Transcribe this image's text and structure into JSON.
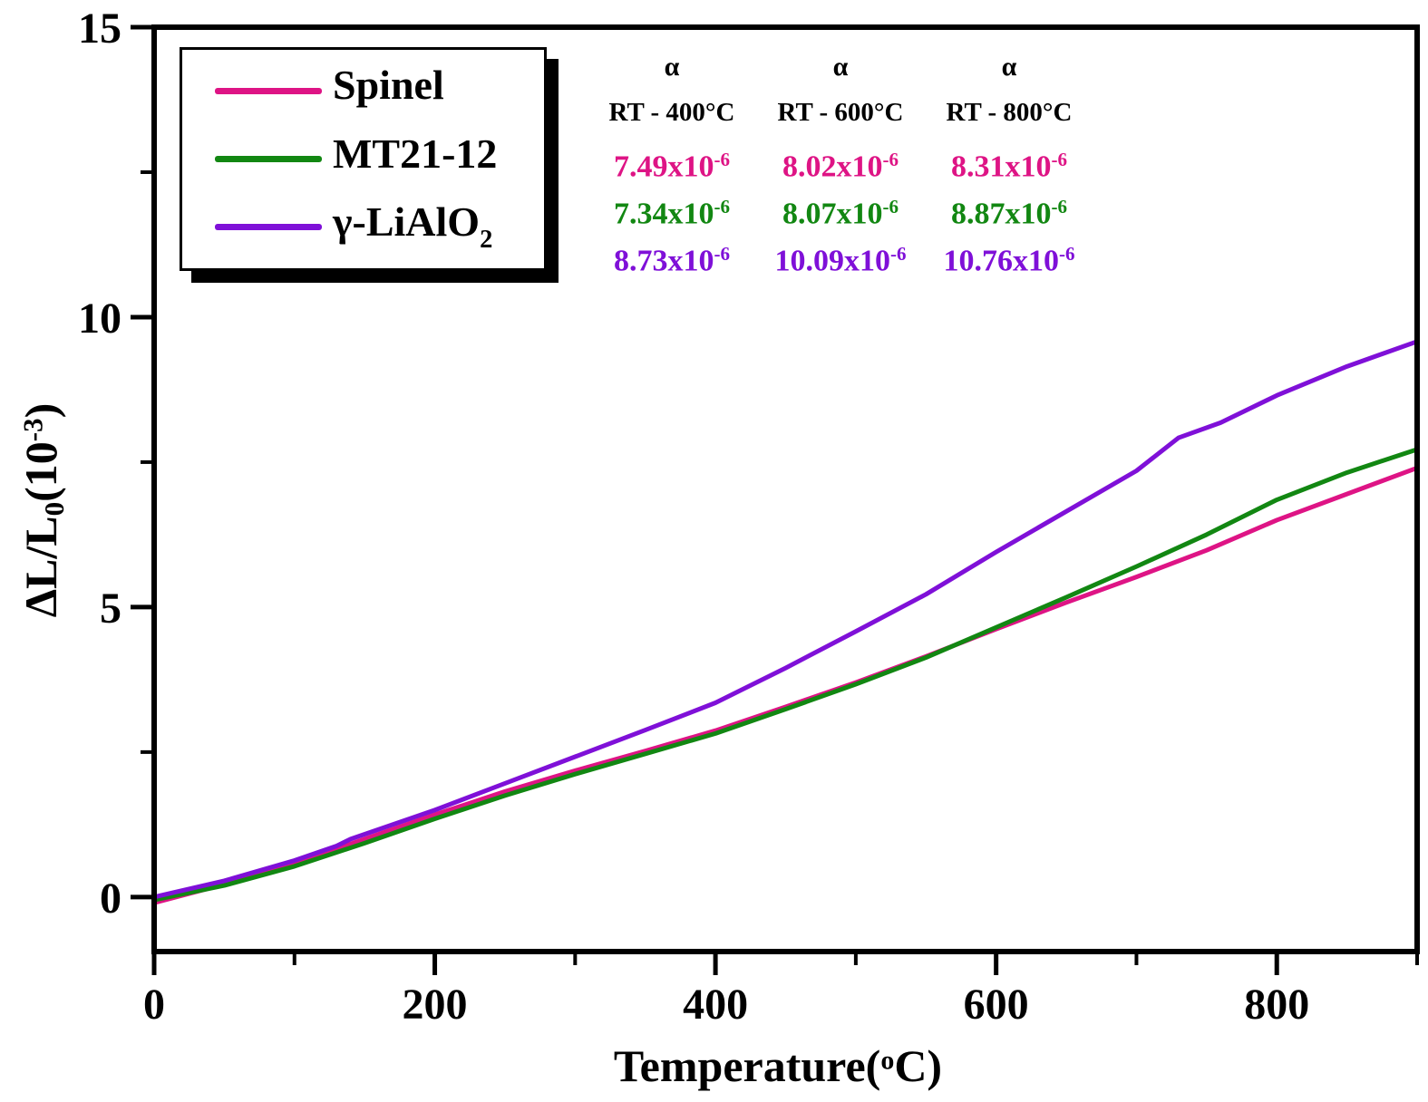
{
  "figure": {
    "background": "#ffffff"
  },
  "y_axis_label": {
    "pre": "ΔL/L",
    "sub": "0",
    "mid": "(10",
    "sup": "-3",
    "post": ")"
  },
  "x_axis_label": {
    "pre": "Temperature(",
    "deg": "o",
    "post": "C)"
  },
  "legend": {
    "items": [
      {
        "name": "Spinel",
        "sub": "",
        "color": "#DE1485"
      },
      {
        "name": "MT21-12",
        "sub": "",
        "color": "#128712"
      },
      {
        "name": "γ-LiAlO",
        "sub": "2",
        "color": "#7F10D8"
      }
    ]
  },
  "alpha_table": {
    "symbol": "α",
    "headers": [
      "RT - 400°C",
      "RT - 600°C",
      "RT - 800°C"
    ],
    "rows": [
      {
        "series": "Spinel",
        "color": "#DE1485",
        "values": [
          {
            "m": "7.49x10",
            "e": "-6"
          },
          {
            "m": "8.02x10",
            "e": "-6"
          },
          {
            "m": "8.31x10",
            "e": "-6"
          }
        ]
      },
      {
        "series": "MT21-12",
        "color": "#128712",
        "values": [
          {
            "m": "7.34x10",
            "e": "-6"
          },
          {
            "m": "8.07x10",
            "e": "-6"
          },
          {
            "m": "8.87x10",
            "e": "-6"
          }
        ]
      },
      {
        "series": "γ-LiAlO2",
        "color": "#7F10D8",
        "values": [
          {
            "m": "8.73x10",
            "e": "-6"
          },
          {
            "m": "10.09x10",
            "e": "-6"
          },
          {
            "m": "10.76x10",
            "e": "-6"
          }
        ]
      }
    ]
  },
  "chart_data": {
    "type": "line",
    "title": "",
    "xlabel": "Temperature(°C)",
    "ylabel": "ΔL/L0(10^-3)",
    "xlim": [
      0,
      900
    ],
    "ylim": [
      -0.94,
      15
    ],
    "x_major_ticks": [
      0,
      200,
      400,
      600,
      800
    ],
    "x_minor_ticks": [
      100,
      300,
      500,
      700,
      900
    ],
    "y_major_ticks": [
      0,
      5,
      10,
      15
    ],
    "y_minor_ticks": [
      2.5,
      7.5,
      12.5
    ],
    "grid": false,
    "legend_position": "top-left",
    "series": [
      {
        "name": "Spinel",
        "color": "#DE1485",
        "points": [
          [
            0,
            -0.1
          ],
          [
            50,
            0.22
          ],
          [
            100,
            0.58
          ],
          [
            150,
            1.0
          ],
          [
            200,
            1.42
          ],
          [
            250,
            1.82
          ],
          [
            300,
            2.18
          ],
          [
            350,
            2.52
          ],
          [
            400,
            2.87
          ],
          [
            450,
            3.28
          ],
          [
            500,
            3.7
          ],
          [
            550,
            4.15
          ],
          [
            600,
            4.62
          ],
          [
            650,
            5.08
          ],
          [
            700,
            5.52
          ],
          [
            750,
            5.98
          ],
          [
            800,
            6.5
          ],
          [
            850,
            6.95
          ],
          [
            900,
            7.4
          ]
        ]
      },
      {
        "name": "MT21-12",
        "color": "#128712",
        "points": [
          [
            0,
            -0.05
          ],
          [
            50,
            0.2
          ],
          [
            100,
            0.53
          ],
          [
            150,
            0.93
          ],
          [
            200,
            1.35
          ],
          [
            250,
            1.75
          ],
          [
            300,
            2.12
          ],
          [
            350,
            2.47
          ],
          [
            400,
            2.82
          ],
          [
            450,
            3.24
          ],
          [
            500,
            3.67
          ],
          [
            550,
            4.13
          ],
          [
            600,
            4.65
          ],
          [
            650,
            5.17
          ],
          [
            700,
            5.7
          ],
          [
            750,
            6.25
          ],
          [
            800,
            6.85
          ],
          [
            850,
            7.32
          ],
          [
            900,
            7.72
          ]
        ]
      },
      {
        "name": "γ-LiAlO2",
        "color": "#7F10D8",
        "points": [
          [
            0,
            0.0
          ],
          [
            50,
            0.28
          ],
          [
            100,
            0.63
          ],
          [
            130,
            0.88
          ],
          [
            140,
            1.0
          ],
          [
            200,
            1.5
          ],
          [
            250,
            1.96
          ],
          [
            300,
            2.42
          ],
          [
            350,
            2.88
          ],
          [
            400,
            3.35
          ],
          [
            450,
            3.95
          ],
          [
            500,
            4.58
          ],
          [
            550,
            5.22
          ],
          [
            600,
            5.95
          ],
          [
            650,
            6.65
          ],
          [
            700,
            7.35
          ],
          [
            730,
            7.92
          ],
          [
            760,
            8.18
          ],
          [
            800,
            8.65
          ],
          [
            850,
            9.15
          ],
          [
            900,
            9.58
          ]
        ]
      }
    ]
  }
}
